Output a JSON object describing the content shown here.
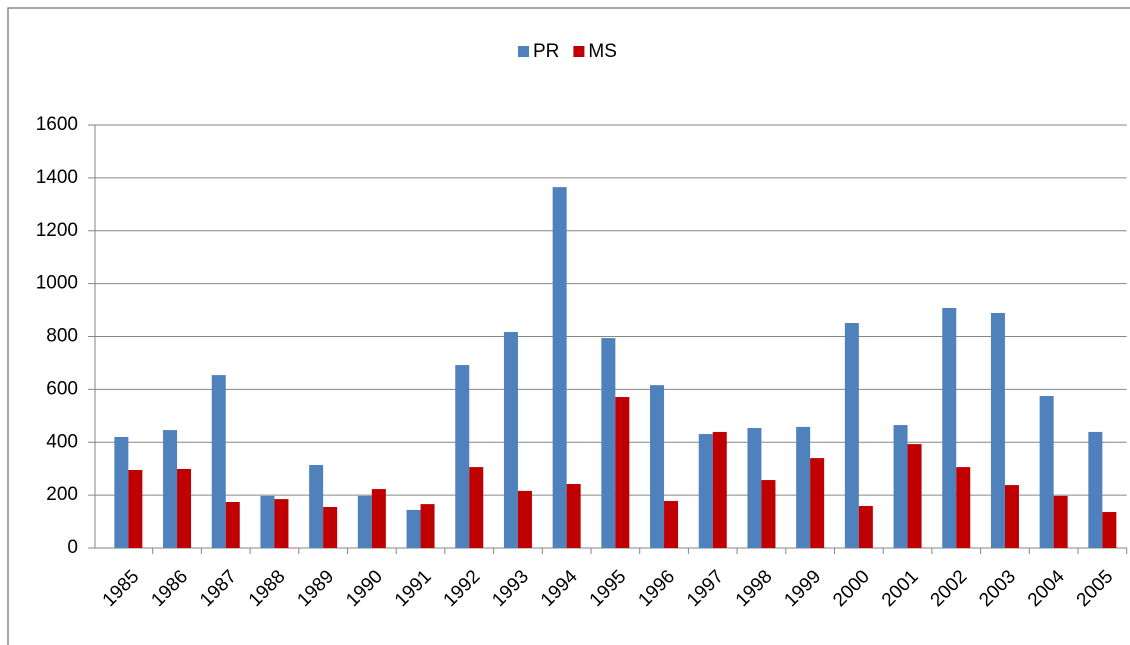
{
  "chart_data": {
    "type": "bar",
    "categories": [
      "1985",
      "1986",
      "1987",
      "1988",
      "1989",
      "1990",
      "1991",
      "1992",
      "1993",
      "1994",
      "1995",
      "1996",
      "1997",
      "1998",
      "1999",
      "2000",
      "2001",
      "2002",
      "2003",
      "2004",
      "2005"
    ],
    "series": [
      {
        "name": "PR",
        "color": "#4f81bd",
        "values": [
          420,
          446,
          654,
          197,
          314,
          197,
          144,
          692,
          817,
          1365,
          794,
          616,
          431,
          454,
          458,
          851,
          465,
          908,
          889,
          575,
          439
        ]
      },
      {
        "name": "MS",
        "color": "#c00000",
        "values": [
          295,
          299,
          174,
          185,
          155,
          223,
          166,
          306,
          216,
          242,
          571,
          178,
          439,
          257,
          340,
          159,
          393,
          306,
          238,
          197,
          136
        ]
      }
    ],
    "ylim": [
      0,
      1600
    ],
    "yticks": [
      0,
      200,
      400,
      600,
      800,
      1000,
      1200,
      1400,
      1600
    ],
    "grid": true,
    "legend": "top"
  }
}
